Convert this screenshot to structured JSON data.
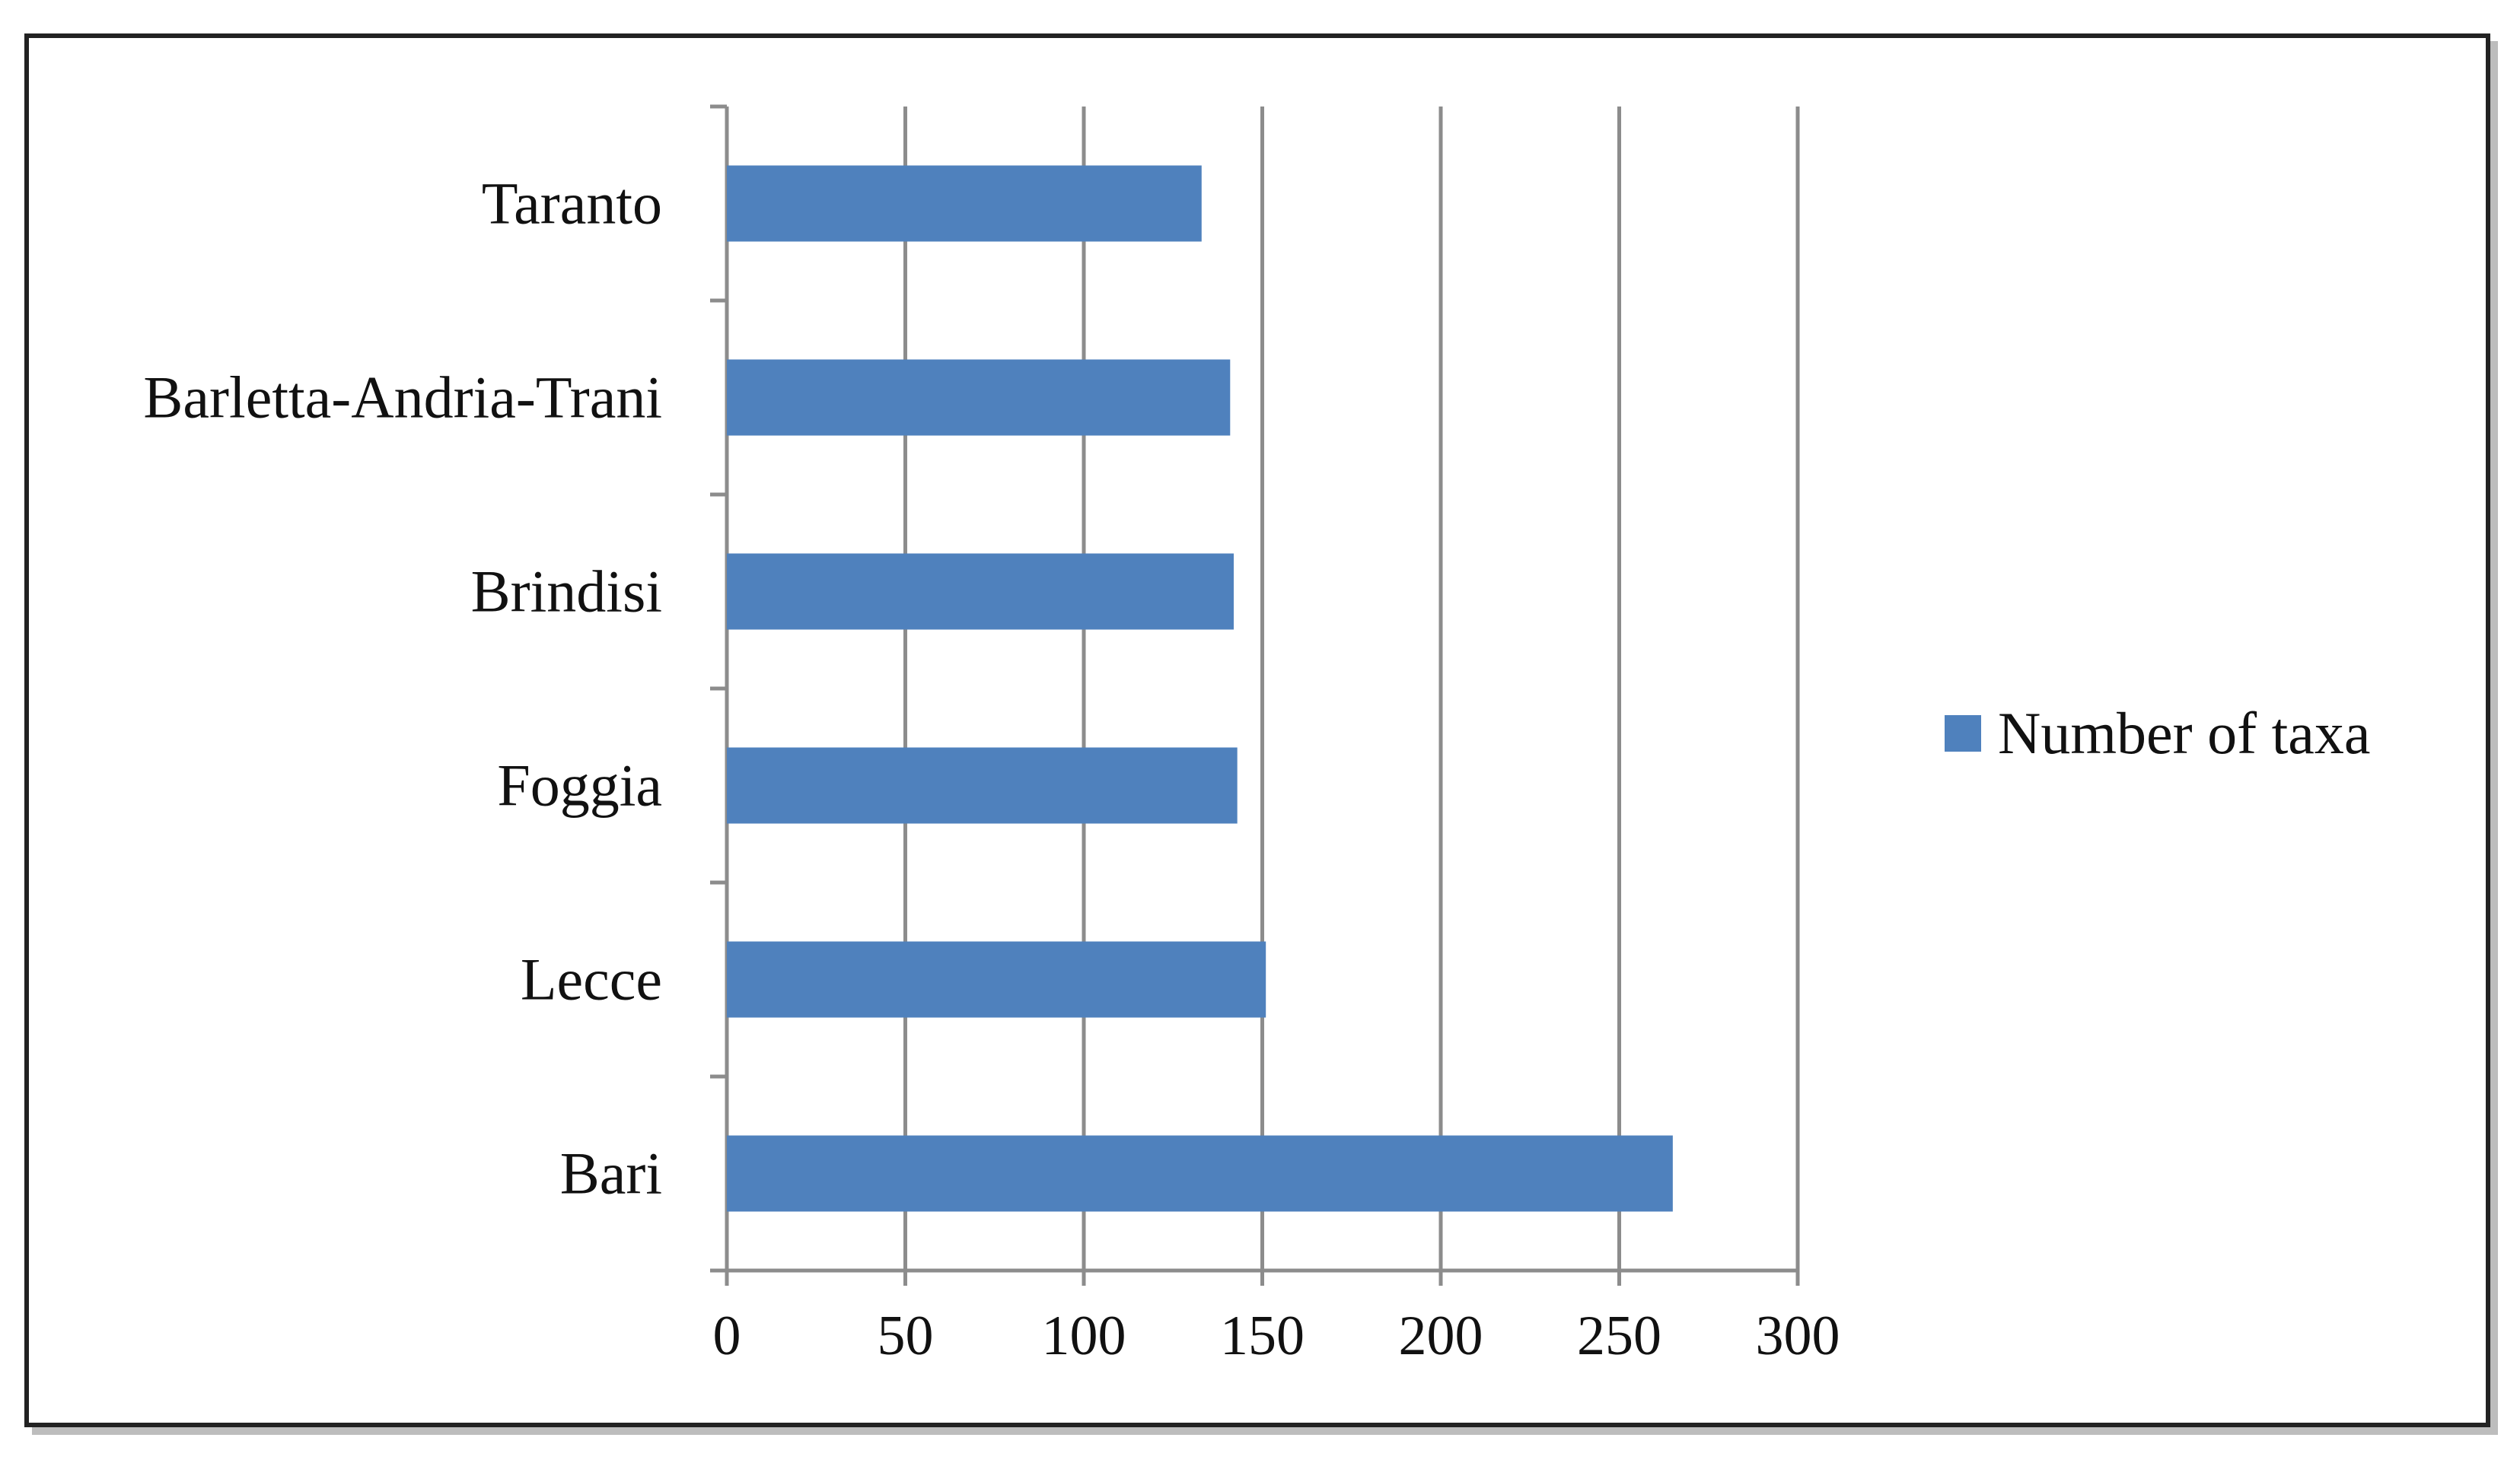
{
  "chart_data": {
    "type": "bar",
    "orientation": "horizontal",
    "categories": [
      "Bari",
      "Lecce",
      "Foggia",
      "Brindisi",
      "Barletta-Andria-Trani",
      "Taranto"
    ],
    "series": [
      {
        "name": "Number of taxa",
        "values": [
          265,
          151,
          143,
          142,
          141,
          133
        ],
        "color": "#4f81bd"
      }
    ],
    "xlim": [
      0,
      300
    ],
    "xticks": [
      0,
      50,
      100,
      150,
      200,
      250,
      300
    ],
    "grid": true,
    "legend": "right",
    "title": "",
    "xlabel": "",
    "ylabel": ""
  }
}
